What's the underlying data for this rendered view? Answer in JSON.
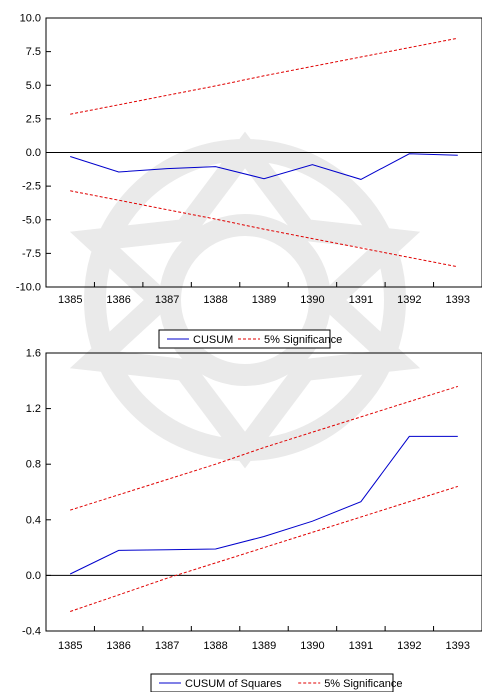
{
  "chart_data": [
    {
      "type": "line",
      "x": [
        "1385",
        "1386",
        "1387",
        "1388",
        "1389",
        "1390",
        "1391",
        "1392",
        "1393"
      ],
      "series": [
        {
          "name": "CUSUM",
          "color": "#0000cc",
          "dash": "solid",
          "values": [
            -0.3,
            -1.45,
            -1.2,
            -1.05,
            -1.95,
            -0.9,
            -2.0,
            -0.1,
            -0.2
          ]
        },
        {
          "name": "5% Significance",
          "color": "#e00000",
          "dash": "dashed",
          "values": [
            2.85,
            3.55,
            4.25,
            4.95,
            5.7,
            6.4,
            7.1,
            7.8,
            8.5
          ]
        },
        {
          "name": "",
          "color": "#e00000",
          "dash": "dashed",
          "values": [
            -2.85,
            -3.55,
            -4.25,
            -4.95,
            -5.7,
            -6.4,
            -7.1,
            -7.8,
            -8.5
          ]
        }
      ],
      "yticks": [
        10.0,
        7.5,
        5.0,
        2.5,
        0.0,
        -2.5,
        -5.0,
        -7.5,
        -10.0
      ],
      "ytick_labels": [
        "10.0",
        "7.5",
        "5.0",
        "2.5",
        "0.0",
        "-2.5",
        "-5.0",
        "-7.5",
        "-10.0"
      ],
      "ylim": [
        -10.0,
        10.0
      ],
      "zero_line": true,
      "legend": [
        "CUSUM",
        "5% Significance"
      ],
      "legend_position": "bottom-center",
      "grid": false
    },
    {
      "type": "line",
      "x": [
        "1385",
        "1386",
        "1387",
        "1388",
        "1389",
        "1390",
        "1391",
        "1392",
        "1393"
      ],
      "series": [
        {
          "name": "CUSUM of Squares",
          "color": "#0000cc",
          "dash": "solid",
          "values": [
            0.01,
            0.18,
            0.185,
            0.19,
            0.28,
            0.39,
            0.53,
            1.0,
            1.0
          ]
        },
        {
          "name": "5% Significance",
          "color": "#e00000",
          "dash": "dashed",
          "values": [
            0.47,
            0.58,
            0.69,
            0.8,
            0.92,
            1.03,
            1.14,
            1.25,
            1.36
          ]
        },
        {
          "name": "",
          "color": "#e00000",
          "dash": "dashed",
          "values": [
            -0.26,
            -0.14,
            -0.02,
            0.09,
            0.2,
            0.31,
            0.42,
            0.53,
            0.64
          ]
        }
      ],
      "yticks": [
        1.6,
        1.2,
        0.8,
        0.4,
        0.0,
        -0.4
      ],
      "ytick_labels": [
        "1.6",
        "1.2",
        "0.8",
        "0.4",
        "0.0",
        "-0.4"
      ],
      "ylim": [
        -0.4,
        1.6
      ],
      "zero_line": true,
      "legend": [
        "CUSUM of Squares",
        "5% Significance"
      ],
      "legend_position": "bottom-center",
      "grid": false
    }
  ]
}
